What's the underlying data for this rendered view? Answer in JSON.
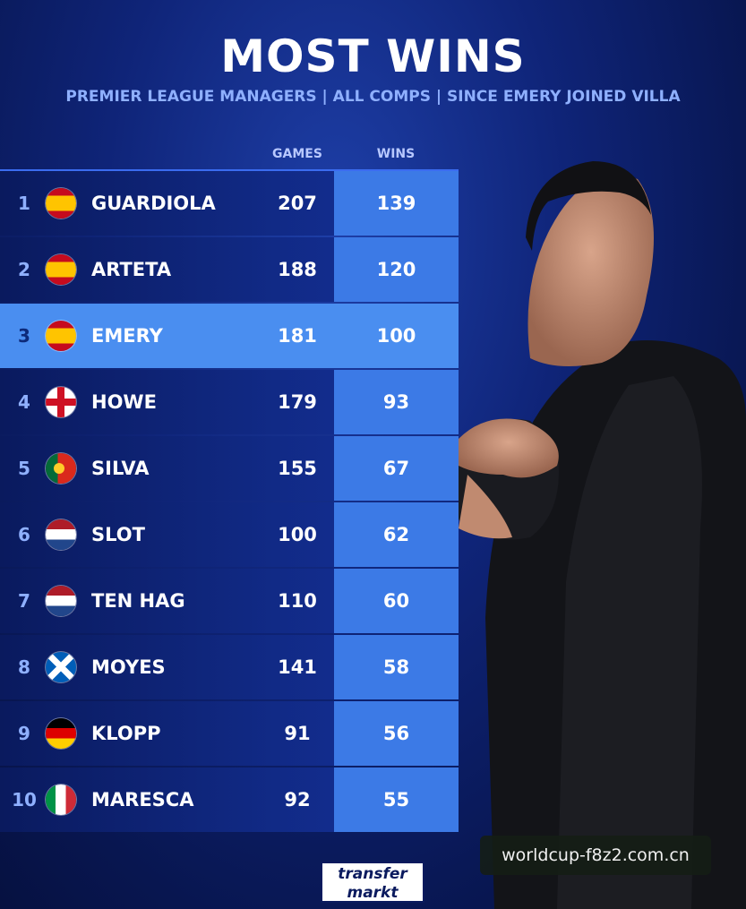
{
  "header": {
    "title": "MOST WINS",
    "subtitle": "PREMIER LEAGUE MANAGERS | ALL COMPS | SINCE EMERY JOINED VILLA"
  },
  "table": {
    "columns": {
      "games": "GAMES",
      "wins": "WINS"
    },
    "rows": [
      {
        "rank": "1",
        "flag": "spain-flag-icon",
        "name": "GUARDIOLA",
        "games": "207",
        "wins": "139"
      },
      {
        "rank": "2",
        "flag": "spain-flag-icon",
        "name": "ARTETA",
        "games": "188",
        "wins": "120"
      },
      {
        "rank": "3",
        "flag": "spain-flag-icon",
        "name": "EMERY",
        "games": "181",
        "wins": "100",
        "highlight": true
      },
      {
        "rank": "4",
        "flag": "england-flag-icon",
        "name": "HOWE",
        "games": "179",
        "wins": "93"
      },
      {
        "rank": "5",
        "flag": "portugal-flag-icon",
        "name": "SILVA",
        "games": "155",
        "wins": "67"
      },
      {
        "rank": "6",
        "flag": "netherlands-flag-icon",
        "name": "SLOT",
        "games": "100",
        "wins": "62"
      },
      {
        "rank": "7",
        "flag": "netherlands-flag-icon",
        "name": "TEN HAG",
        "games": "110",
        "wins": "60"
      },
      {
        "rank": "8",
        "flag": "scotland-flag-icon",
        "name": "MOYES",
        "games": "141",
        "wins": "58"
      },
      {
        "rank": "9",
        "flag": "germany-flag-icon",
        "name": "KLOPP",
        "games": "91",
        "wins": "56"
      },
      {
        "rank": "10",
        "flag": "italy-flag-icon",
        "name": "MARESCA",
        "games": "92",
        "wins": "55"
      }
    ]
  },
  "logo": {
    "line1": "transfer",
    "line2": "markt"
  },
  "watermark": "worldcup-f8z2.com.cn",
  "colors": {
    "background": "#0f2478",
    "highlight_row": "#4a8ef0",
    "wins_column": "#3c7ae6",
    "subtitle": "#8fb0ff"
  }
}
